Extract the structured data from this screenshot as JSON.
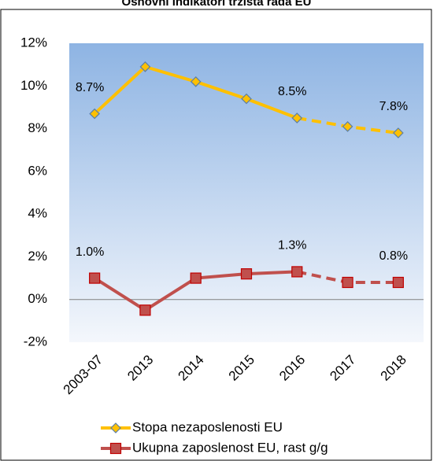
{
  "chart_data": {
    "type": "line",
    "title": "Osnovni indikatori tržišta rada EU",
    "categories": [
      "2003-07",
      "2013",
      "2014",
      "2015",
      "2016",
      "2017",
      "2018"
    ],
    "dashed_from": "2016",
    "series": [
      {
        "name": "Stopa nezaposlenosti EU",
        "color": "#ffc000",
        "marker": "diamond",
        "marker_edge": "#5b7fa6",
        "values": [
          8.7,
          10.9,
          10.2,
          9.4,
          8.5,
          8.1,
          7.8
        ],
        "value_labels": [
          "8.7%",
          null,
          null,
          null,
          "8.5%",
          null,
          "7.8%"
        ]
      },
      {
        "name": "Ukupna zaposlenost EU, rast g/g",
        "color": "#c0504d",
        "marker": "square",
        "marker_edge": "#c00000",
        "values": [
          1.0,
          -0.5,
          1.0,
          1.2,
          1.3,
          0.8,
          0.8
        ],
        "value_labels": [
          "1.0%",
          null,
          null,
          null,
          "1.3%",
          null,
          "0.8%"
        ]
      }
    ],
    "ylim": [
      -2,
      12
    ],
    "yticks": [
      {
        "value": -2,
        "label": "-2%"
      },
      {
        "value": 0,
        "label": "0%"
      },
      {
        "value": 2,
        "label": "2%"
      },
      {
        "value": 4,
        "label": "4%"
      },
      {
        "value": 6,
        "label": "6%"
      },
      {
        "value": 8,
        "label": "8%"
      },
      {
        "value": 10,
        "label": "10%"
      },
      {
        "value": 12,
        "label": "12%"
      }
    ],
    "legend": "bottom"
  }
}
